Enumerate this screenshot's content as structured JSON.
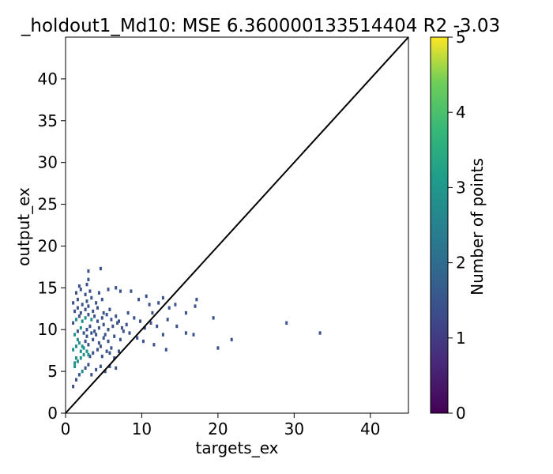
{
  "chart_data": {
    "type": "heatmap",
    "title": "_holdout1_Md10: MSE 6.360000133514404 R2 -3.03",
    "xlabel": "targets_ex",
    "ylabel": "output_ex",
    "xlim": [
      0,
      45
    ],
    "ylim": [
      0,
      45
    ],
    "xticks": [
      0,
      10,
      20,
      30,
      40
    ],
    "yticks": [
      0,
      5,
      10,
      15,
      20,
      25,
      30,
      35,
      40
    ],
    "reference_line": {
      "from": [
        0,
        0
      ],
      "to": [
        45,
        45
      ],
      "color": "#000000"
    },
    "colorbar": {
      "label": "Number of points",
      "min": 0,
      "max": 5,
      "ticks": [
        0,
        1,
        2,
        3,
        4,
        5
      ],
      "colormap": [
        "#440154",
        "#3b528b",
        "#21918c",
        "#5ec962",
        "#fde725"
      ]
    },
    "points": [
      [
        1.0,
        3.2,
        1
      ],
      [
        1.4,
        4.0,
        1
      ],
      [
        1.8,
        4.6,
        1
      ],
      [
        2.2,
        5.0,
        2
      ],
      [
        2.6,
        5.4,
        1
      ],
      [
        3.0,
        5.8,
        1
      ],
      [
        3.4,
        4.6,
        1
      ],
      [
        4.0,
        5.2,
        1
      ],
      [
        4.6,
        5.6,
        1
      ],
      [
        5.2,
        5.0,
        1
      ],
      [
        5.8,
        5.6,
        1
      ],
      [
        6.6,
        5.4,
        1
      ],
      [
        1.2,
        5.6,
        2
      ],
      [
        1.6,
        6.2,
        2
      ],
      [
        2.0,
        6.6,
        3
      ],
      [
        2.4,
        7.0,
        2
      ],
      [
        2.8,
        7.4,
        2
      ],
      [
        3.2,
        6.8,
        1
      ],
      [
        3.6,
        7.2,
        1
      ],
      [
        4.2,
        7.6,
        1
      ],
      [
        4.8,
        6.8,
        1
      ],
      [
        5.4,
        7.4,
        1
      ],
      [
        6.0,
        7.8,
        1
      ],
      [
        1.0,
        7.6,
        2
      ],
      [
        1.4,
        8.0,
        3
      ],
      [
        1.8,
        8.4,
        2
      ],
      [
        2.2,
        8.0,
        2
      ],
      [
        2.6,
        8.6,
        1
      ],
      [
        3.0,
        8.2,
        1
      ],
      [
        3.6,
        8.8,
        1
      ],
      [
        4.4,
        8.4,
        1
      ],
      [
        5.0,
        9.0,
        1
      ],
      [
        5.6,
        8.6,
        1
      ],
      [
        6.4,
        9.2,
        1
      ],
      [
        7.2,
        8.8,
        1
      ],
      [
        1.2,
        9.4,
        2
      ],
      [
        1.6,
        9.8,
        1
      ],
      [
        2.0,
        10.2,
        2
      ],
      [
        2.4,
        9.6,
        1
      ],
      [
        2.8,
        10.0,
        1
      ],
      [
        3.2,
        10.4,
        1
      ],
      [
        3.8,
        9.8,
        1
      ],
      [
        4.4,
        10.2,
        1
      ],
      [
        5.0,
        10.6,
        1
      ],
      [
        5.6,
        10.0,
        1
      ],
      [
        6.2,
        10.4,
        1
      ],
      [
        6.8,
        10.8,
        1
      ],
      [
        7.4,
        10.2,
        1
      ],
      [
        8.0,
        10.6,
        1
      ],
      [
        1.0,
        10.8,
        1
      ],
      [
        1.4,
        11.2,
        2
      ],
      [
        1.8,
        11.6,
        1
      ],
      [
        2.2,
        11.0,
        2
      ],
      [
        2.6,
        11.4,
        2
      ],
      [
        3.0,
        11.8,
        1
      ],
      [
        3.4,
        11.2,
        2
      ],
      [
        3.8,
        11.6,
        1
      ],
      [
        4.2,
        11.0,
        1
      ],
      [
        4.8,
        11.4,
        1
      ],
      [
        5.4,
        11.8,
        1
      ],
      [
        6.0,
        11.2,
        1
      ],
      [
        6.6,
        11.6,
        1
      ],
      [
        7.0,
        11.0,
        1
      ],
      [
        1.2,
        12.2,
        1
      ],
      [
        1.6,
        12.6,
        1
      ],
      [
        2.0,
        12.0,
        1
      ],
      [
        2.6,
        12.4,
        1
      ],
      [
        3.0,
        12.8,
        1
      ],
      [
        3.6,
        12.2,
        1
      ],
      [
        4.2,
        12.6,
        1
      ],
      [
        5.0,
        12.0,
        1
      ],
      [
        5.8,
        12.4,
        1
      ],
      [
        1.0,
        13.2,
        1
      ],
      [
        1.6,
        13.6,
        1
      ],
      [
        2.2,
        13.0,
        1
      ],
      [
        2.8,
        13.4,
        1
      ],
      [
        3.4,
        13.8,
        1
      ],
      [
        4.0,
        13.2,
        1
      ],
      [
        4.8,
        13.6,
        1
      ],
      [
        1.4,
        14.4,
        1
      ],
      [
        2.0,
        14.8,
        1
      ],
      [
        2.6,
        14.2,
        1
      ],
      [
        3.2,
        14.6,
        1
      ],
      [
        4.4,
        14.4,
        1
      ],
      [
        5.6,
        14.8,
        1
      ],
      [
        1.8,
        15.2,
        1
      ],
      [
        2.8,
        15.4,
        1
      ],
      [
        3.0,
        16.0,
        1
      ],
      [
        3.0,
        17.0,
        1
      ],
      [
        4.6,
        17.3,
        1
      ],
      [
        6.6,
        15.0,
        1
      ],
      [
        7.2,
        14.6,
        1
      ],
      [
        8.6,
        14.6,
        1
      ],
      [
        9.6,
        13.6,
        1
      ],
      [
        10.6,
        14.0,
        1
      ],
      [
        11.0,
        13.0,
        1
      ],
      [
        11.4,
        12.0,
        1
      ],
      [
        12.2,
        13.2,
        1
      ],
      [
        12.8,
        13.8,
        1
      ],
      [
        13.6,
        12.6,
        1
      ],
      [
        14.4,
        13.0,
        1
      ],
      [
        15.8,
        12.0,
        1
      ],
      [
        17.2,
        13.6,
        1
      ],
      [
        17.0,
        12.8,
        1
      ],
      [
        19.4,
        11.4,
        1
      ],
      [
        8.2,
        12.0,
        1
      ],
      [
        9.0,
        11.4,
        1
      ],
      [
        9.8,
        11.0,
        1
      ],
      [
        10.4,
        10.2,
        1
      ],
      [
        11.2,
        10.8,
        1
      ],
      [
        12.0,
        10.4,
        1
      ],
      [
        13.4,
        11.2,
        1
      ],
      [
        14.6,
        10.4,
        1
      ],
      [
        8.4,
        9.6,
        1
      ],
      [
        9.4,
        9.0,
        1
      ],
      [
        10.2,
        8.6,
        1
      ],
      [
        11.6,
        8.2,
        1
      ],
      [
        12.8,
        9.4,
        1
      ],
      [
        13.2,
        7.6,
        1
      ],
      [
        15.8,
        9.6,
        1
      ],
      [
        16.8,
        9.4,
        1
      ],
      [
        20.0,
        7.8,
        1
      ],
      [
        21.8,
        8.8,
        1
      ],
      [
        29.0,
        10.8,
        1
      ],
      [
        33.4,
        9.6,
        1
      ],
      [
        1.4,
        6.6,
        3
      ],
      [
        2.0,
        7.4,
        2
      ],
      [
        1.6,
        8.8,
        2
      ],
      [
        2.4,
        7.8,
        2
      ],
      [
        3.0,
        7.0,
        2
      ],
      [
        1.2,
        6.0,
        2
      ],
      [
        2.8,
        9.2,
        1
      ],
      [
        3.4,
        9.6,
        1
      ],
      [
        4.0,
        9.4,
        1
      ],
      [
        4.6,
        8.0,
        1
      ],
      [
        5.2,
        9.4,
        1
      ],
      [
        5.8,
        7.2,
        1
      ],
      [
        6.4,
        6.6,
        1
      ],
      [
        7.0,
        7.4,
        1
      ],
      [
        7.6,
        9.8,
        1
      ]
    ]
  }
}
